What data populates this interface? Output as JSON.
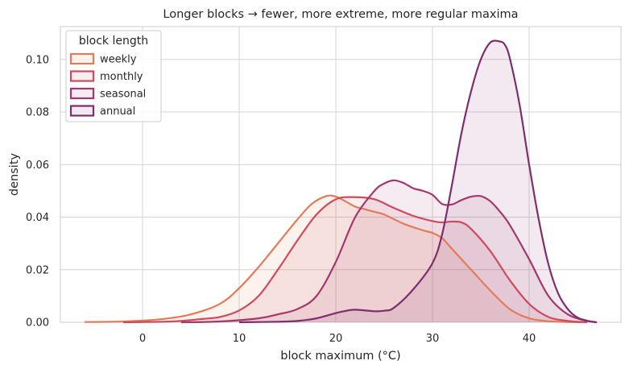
{
  "chart_data": {
    "type": "area",
    "title": "Longer blocks → fewer, more extreme, more regular maxima",
    "xlabel": "block maximum (°C)",
    "ylabel": "density",
    "xlim": [
      -8.5,
      49.5
    ],
    "ylim": [
      0,
      0.1125
    ],
    "xticks": [
      0,
      10,
      20,
      30,
      40
    ],
    "yticks": [
      0.0,
      0.02,
      0.04,
      0.06,
      0.08,
      0.1
    ],
    "ytick_labels": [
      "0.00",
      "0.02",
      "0.04",
      "0.06",
      "0.08",
      "0.10"
    ],
    "grid": true,
    "legend_title": "block length",
    "legend_position": "top-left",
    "series": [
      {
        "name": "weekly",
        "color": "#e07c5a",
        "x": [
          -6,
          -2,
          2,
          5,
          8,
          10,
          12,
          14,
          16,
          17.5,
          19,
          20,
          21,
          22,
          23,
          24,
          25,
          27,
          29,
          30,
          31,
          32,
          34,
          36,
          38,
          40,
          42,
          44,
          46
        ],
        "y": [
          0.0001,
          0.0003,
          0.0012,
          0.003,
          0.007,
          0.013,
          0.021,
          0.03,
          0.039,
          0.045,
          0.048,
          0.0478,
          0.046,
          0.044,
          0.043,
          0.042,
          0.041,
          0.0375,
          0.035,
          0.034,
          0.032,
          0.028,
          0.02,
          0.012,
          0.005,
          0.0015,
          0.0004,
          0.0001,
          0.0
        ]
      },
      {
        "name": "monthly",
        "color": "#cf4a5e",
        "x": [
          -2,
          3,
          6,
          8,
          10,
          12,
          14,
          16,
          18,
          20,
          22,
          24,
          26,
          28,
          30,
          31,
          32,
          33,
          34,
          36,
          38,
          40,
          42,
          44,
          46
        ],
        "y": [
          0.0,
          0.0003,
          0.0012,
          0.002,
          0.0045,
          0.01,
          0.02,
          0.031,
          0.041,
          0.0468,
          0.0476,
          0.0468,
          0.0435,
          0.0405,
          0.0385,
          0.038,
          0.0383,
          0.038,
          0.0355,
          0.027,
          0.016,
          0.007,
          0.002,
          0.0005,
          0.0
        ]
      },
      {
        "name": "seasonal",
        "color": "#a3376e",
        "x": [
          4,
          8,
          12,
          14,
          16,
          18,
          20,
          22,
          24,
          25,
          26,
          27,
          28,
          29,
          30,
          31,
          32,
          33,
          34,
          35,
          36,
          37,
          38,
          40,
          42,
          44,
          46,
          47
        ],
        "y": [
          0.0,
          0.0003,
          0.0015,
          0.003,
          0.005,
          0.01,
          0.023,
          0.04,
          0.05,
          0.0528,
          0.054,
          0.053,
          0.051,
          0.05,
          0.0485,
          0.045,
          0.0448,
          0.0465,
          0.0478,
          0.048,
          0.046,
          0.042,
          0.037,
          0.024,
          0.01,
          0.003,
          0.0005,
          0.0
        ]
      },
      {
        "name": "annual",
        "color": "#7e2d6e",
        "x": [
          10,
          14,
          16,
          18,
          20,
          21,
          22,
          24,
          25,
          26,
          28,
          30,
          31,
          32,
          33,
          34,
          35,
          36,
          37,
          37.5,
          38,
          39,
          40,
          41,
          42,
          43,
          44,
          45,
          46,
          47
        ],
        "y": [
          0.0,
          0.0002,
          0.0005,
          0.0015,
          0.0035,
          0.0043,
          0.0048,
          0.0042,
          0.0044,
          0.0055,
          0.0125,
          0.0225,
          0.0335,
          0.052,
          0.072,
          0.088,
          0.1,
          0.1065,
          0.1068,
          0.1055,
          0.1005,
          0.083,
          0.06,
          0.039,
          0.022,
          0.011,
          0.005,
          0.0018,
          0.0006,
          0.0
        ]
      }
    ]
  }
}
